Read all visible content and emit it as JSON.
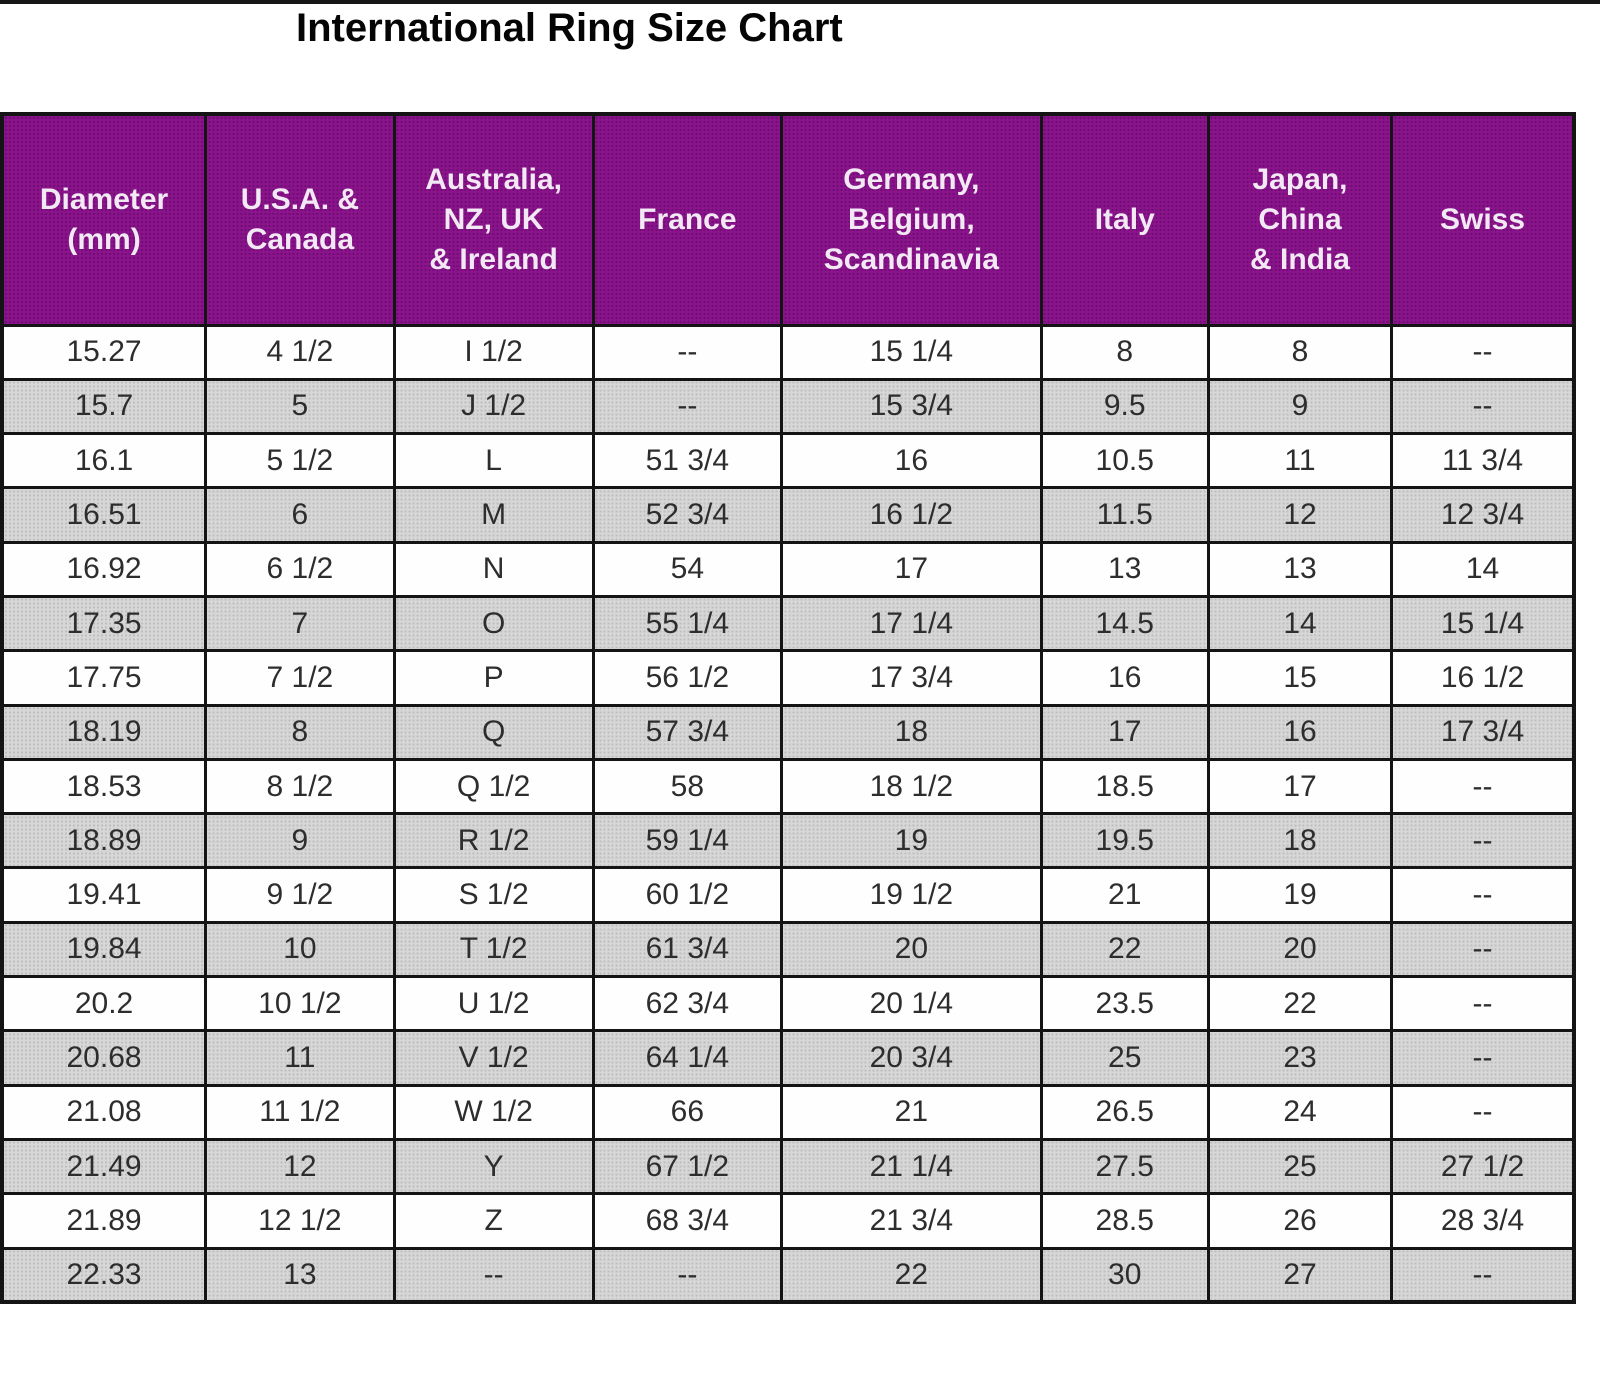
{
  "page": {
    "title": "International Ring Size Chart"
  },
  "colors": {
    "header_bg": "#8b138c",
    "header_text": "#f2e9f4",
    "row_bg": "#fefefe",
    "row_alt_bg": "#d7d7d7",
    "border": "#141414",
    "title_text": "#050505"
  },
  "chart_data": {
    "type": "table",
    "title": "International Ring Size Chart",
    "columns": [
      "Diameter (mm)",
      "U.S.A. & Canada",
      "Australia, NZ, UK & Ireland",
      "France",
      "Germany, Belgium, Scandinavia",
      "Italy",
      "Japan, China & India",
      "Swiss"
    ],
    "columns_display": [
      "Diameter\n(mm)",
      "U.S.A. &\nCanada",
      "Australia,\nNZ, UK\n& Ireland",
      "France",
      "Germany,\nBelgium,\nScandinavia",
      "Italy",
      "Japan,\nChina\n& India",
      "Swiss"
    ],
    "col_widths_pct": [
      12.95,
      12.0,
      12.65,
      12.0,
      16.5,
      10.65,
      11.65,
      11.6
    ],
    "rows": [
      [
        "15.27",
        "4 1/2",
        "I 1/2",
        "--",
        "15 1/4",
        "8",
        "8",
        "--"
      ],
      [
        "15.7",
        "5",
        "J 1/2",
        "--",
        "15 3/4",
        "9.5",
        "9",
        "--"
      ],
      [
        "16.1",
        "5 1/2",
        "L",
        "51 3/4",
        "16",
        "10.5",
        "11",
        "11 3/4"
      ],
      [
        "16.51",
        "6",
        "M",
        "52 3/4",
        "16 1/2",
        "11.5",
        "12",
        "12 3/4"
      ],
      [
        "16.92",
        "6 1/2",
        "N",
        "54",
        "17",
        "13",
        "13",
        "14"
      ],
      [
        "17.35",
        "7",
        "O",
        "55 1/4",
        "17 1/4",
        "14.5",
        "14",
        "15 1/4"
      ],
      [
        "17.75",
        "7 1/2",
        "P",
        "56 1/2",
        "17 3/4",
        "16",
        "15",
        "16 1/2"
      ],
      [
        "18.19",
        "8",
        "Q",
        "57 3/4",
        "18",
        "17",
        "16",
        "17 3/4"
      ],
      [
        "18.53",
        "8 1/2",
        "Q 1/2",
        "58",
        "18 1/2",
        "18.5",
        "17",
        "--"
      ],
      [
        "18.89",
        "9",
        "R 1/2",
        "59 1/4",
        "19",
        "19.5",
        "18",
        "--"
      ],
      [
        "19.41",
        "9 1/2",
        "S 1/2",
        "60 1/2",
        "19 1/2",
        "21",
        "19",
        "--"
      ],
      [
        "19.84",
        "10",
        "T 1/2",
        "61 3/4",
        "20",
        "22",
        "20",
        "--"
      ],
      [
        "20.2",
        "10 1/2",
        "U 1/2",
        "62 3/4",
        "20 1/4",
        "23.5",
        "22",
        "--"
      ],
      [
        "20.68",
        "11",
        "V 1/2",
        "64 1/4",
        "20 3/4",
        "25",
        "23",
        "--"
      ],
      [
        "21.08",
        "11 1/2",
        "W 1/2",
        "66",
        "21",
        "26.5",
        "24",
        "--"
      ],
      [
        "21.49",
        "12",
        "Y",
        "67 1/2",
        "21 1/4",
        "27.5",
        "25",
        "27 1/2"
      ],
      [
        "21.89",
        "12 1/2",
        "Z",
        "68 3/4",
        "21 3/4",
        "28.5",
        "26",
        "28 3/4"
      ],
      [
        "22.33",
        "13",
        "--",
        "--",
        "22",
        "30",
        "27",
        "--"
      ]
    ]
  }
}
